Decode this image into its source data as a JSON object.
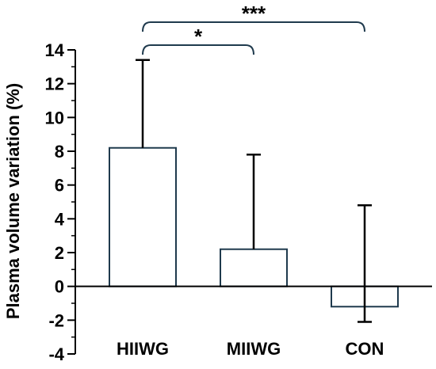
{
  "chart_data": {
    "type": "bar",
    "title": "",
    "xlabel": "",
    "ylabel": "Plasma volume variation (%)",
    "categories": [
      "HIIWG",
      "MIIWG",
      "CON"
    ],
    "values": [
      8.2,
      2.2,
      -1.2
    ],
    "error_bars": [
      {
        "lower": 8.2,
        "upper": 13.4
      },
      {
        "lower": 2.2,
        "upper": 7.8
      },
      {
        "lower": -2.1,
        "upper": 4.8
      }
    ],
    "ylim": [
      -4,
      14
    ],
    "y_ticks": [
      "-4",
      "-2",
      "0",
      "2",
      "4",
      "6",
      "8",
      "10",
      "12",
      "14"
    ],
    "significance": [
      {
        "from": "HIIWG",
        "to": "MIIWG",
        "label": "*"
      },
      {
        "from": "HIIWG",
        "to": "CON",
        "label": "***"
      }
    ],
    "grid": false,
    "legend": "none",
    "colors": {
      "bar_fill": "#ffffff",
      "bar_stroke": "#1f3a4d",
      "axis": "#000000"
    }
  }
}
